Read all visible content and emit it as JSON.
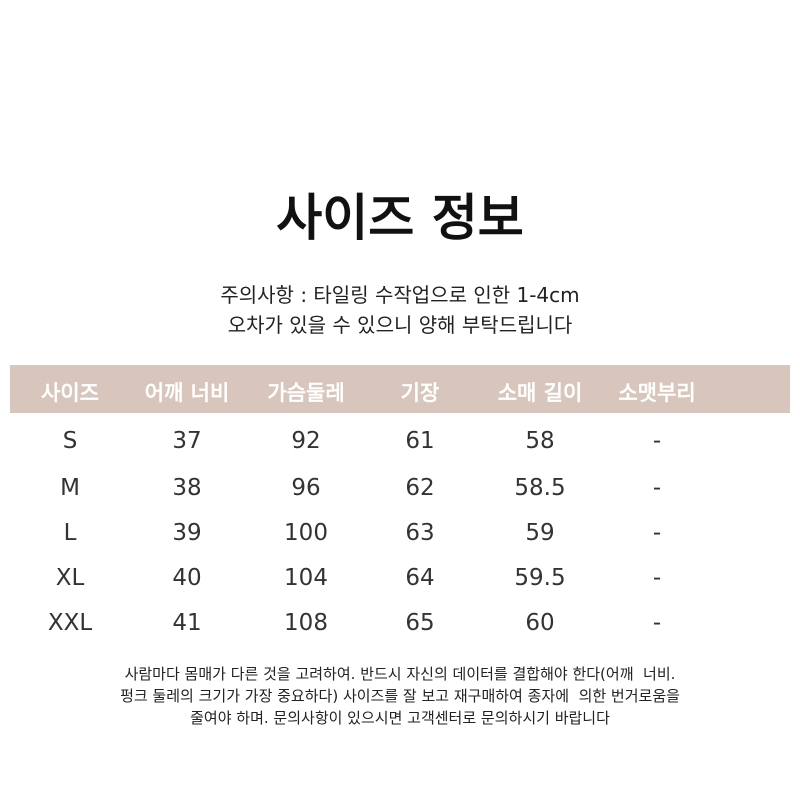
{
  "title": "사이즈 정보",
  "notice": [
    "주의사항 : 타일링 수작업으로 인한 1-4cm",
    "오차가 있을 수 있으니 양해 부탁드립니다"
  ],
  "table": {
    "header": [
      "사이즈",
      "어깨 너비",
      "가슴둘레",
      "기장",
      "소매 길이",
      "소맷부리"
    ],
    "rows": [
      [
        "S",
        37,
        92,
        61,
        58,
        "-"
      ],
      [
        "M",
        38,
        96,
        62,
        58.5,
        "-"
      ],
      [
        "L",
        39,
        100,
        63,
        59,
        "-"
      ],
      [
        "XL",
        40,
        104,
        64,
        59.5,
        "-"
      ],
      [
        "XXL",
        41,
        108,
        65,
        60,
        "-"
      ]
    ]
  },
  "footer": [
    "사람마다 몸매가 다른 것을 고려하여. 반드시 자신의 데이터를 결합해야 한다(어깨  너비.",
    "펑크 둘레의 크기가 가장 중요하다) 사이즈를 잘 보고 재구매하여 종자에  의한 번거로움을",
    "줄여야 하며. 문의사항이 있으시면 고객센터로 문의하시기 바랍니다"
  ]
}
